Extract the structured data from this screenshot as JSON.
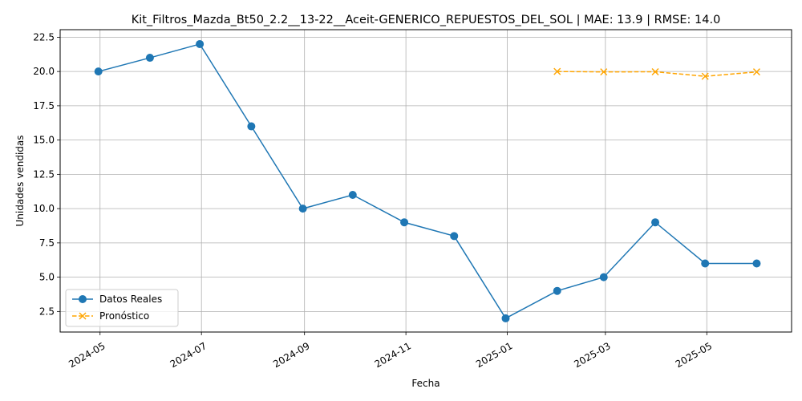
{
  "chart_data": {
    "type": "line",
    "title": "Kit_Filtros_Mazda_Bt50_2.2__13-22__Aceit-GENERICO_REPUESTOS_DEL_SOL | MAE: 13.9 | RMSE: 14.0",
    "xlabel": "Fecha",
    "ylabel": "Unidades vendidas",
    "xlim": [
      "2024-04-07",
      "2025-06-21"
    ],
    "ylim": [
      1.0,
      23.05
    ],
    "x_ticks": [
      {
        "date": "2024-05-01",
        "label": "2024-05"
      },
      {
        "date": "2024-07-01",
        "label": "2024-07"
      },
      {
        "date": "2024-09-01",
        "label": "2024-09"
      },
      {
        "date": "2024-11-01",
        "label": "2024-11"
      },
      {
        "date": "2025-01-01",
        "label": "2025-01"
      },
      {
        "date": "2025-03-01",
        "label": "2025-03"
      },
      {
        "date": "2025-05-01",
        "label": "2025-05"
      }
    ],
    "y_ticks": [
      {
        "value": 2.5,
        "label": "2.5"
      },
      {
        "value": 5.0,
        "label": "5.0"
      },
      {
        "value": 7.5,
        "label": "7.5"
      },
      {
        "value": 10.0,
        "label": "10.0"
      },
      {
        "value": 12.5,
        "label": "12.5"
      },
      {
        "value": 15.0,
        "label": "15.0"
      },
      {
        "value": 17.5,
        "label": "17.5"
      },
      {
        "value": 20.0,
        "label": "20.0"
      },
      {
        "value": 22.5,
        "label": "22.5"
      }
    ],
    "grid": true,
    "legend_position": "lower-left",
    "series": [
      {
        "name": "Datos Reales",
        "color": "#1f77b4",
        "marker": "circle",
        "linestyle": "solid",
        "points": [
          {
            "x": "2024-04-30",
            "y": 20
          },
          {
            "x": "2024-05-31",
            "y": 21
          },
          {
            "x": "2024-06-30",
            "y": 22
          },
          {
            "x": "2024-07-31",
            "y": 16
          },
          {
            "x": "2024-08-31",
            "y": 10
          },
          {
            "x": "2024-09-30",
            "y": 11
          },
          {
            "x": "2024-10-31",
            "y": 9
          },
          {
            "x": "2024-11-30",
            "y": 8
          },
          {
            "x": "2024-12-31",
            "y": 2
          },
          {
            "x": "2025-01-31",
            "y": 4
          },
          {
            "x": "2025-02-28",
            "y": 5
          },
          {
            "x": "2025-03-31",
            "y": 9
          },
          {
            "x": "2025-04-30",
            "y": 6
          },
          {
            "x": "2025-05-31",
            "y": 6
          }
        ]
      },
      {
        "name": "Pronóstico",
        "color": "#ffa500",
        "marker": "x",
        "linestyle": "dashed",
        "points": [
          {
            "x": "2025-01-31",
            "y": 20.0
          },
          {
            "x": "2025-02-28",
            "y": 19.97
          },
          {
            "x": "2025-03-31",
            "y": 19.98
          },
          {
            "x": "2025-04-30",
            "y": 19.65
          },
          {
            "x": "2025-05-31",
            "y": 19.97
          }
        ]
      }
    ]
  }
}
